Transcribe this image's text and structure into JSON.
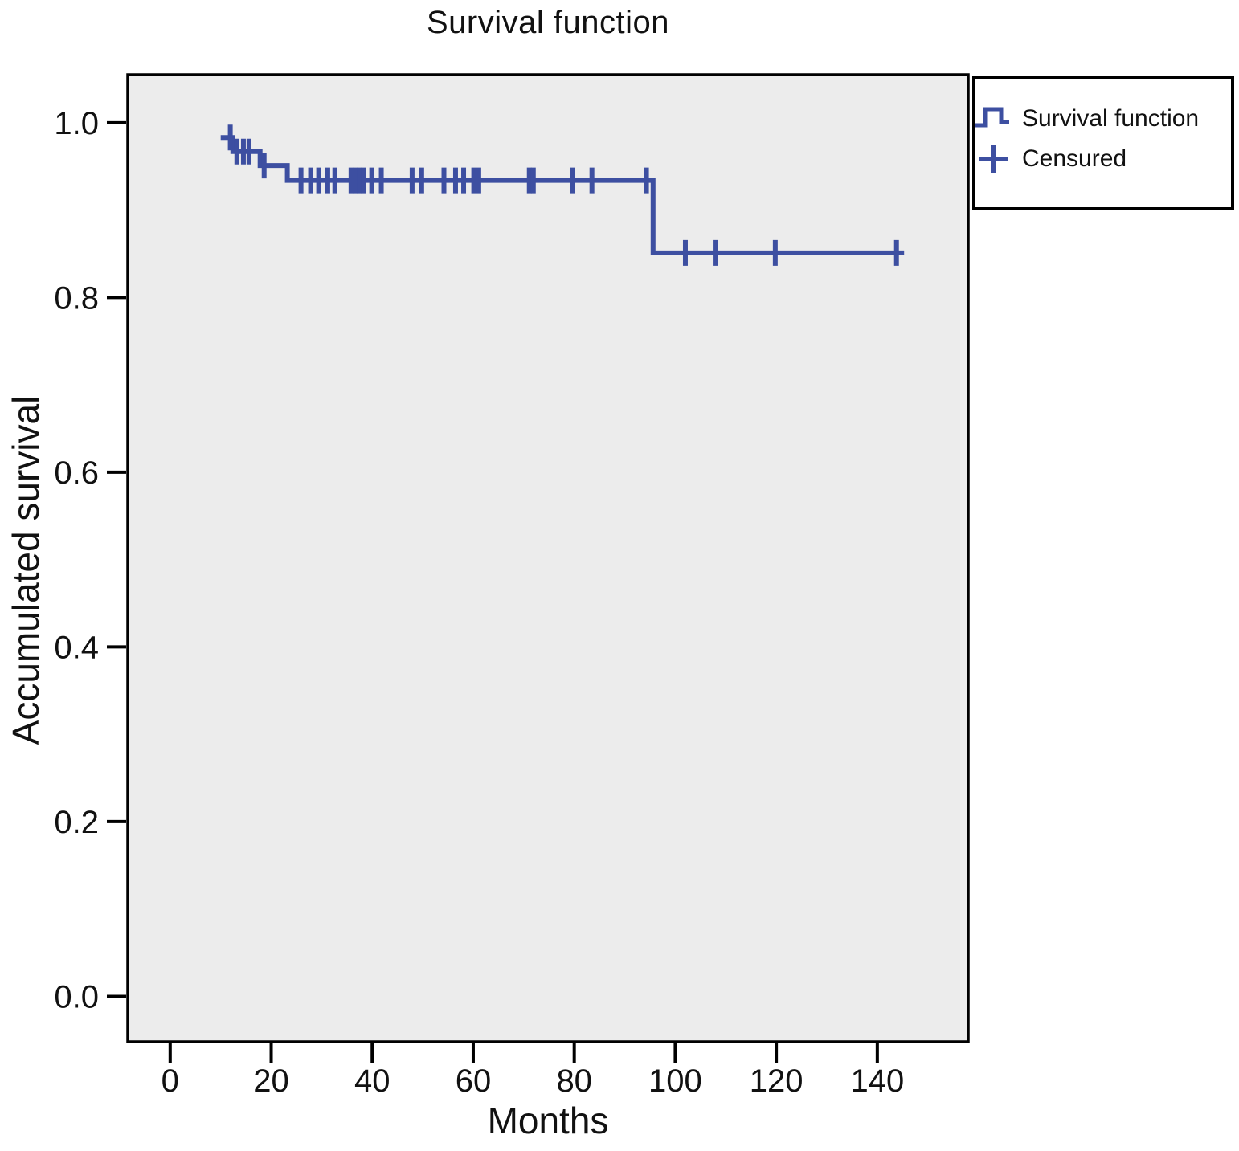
{
  "title": "Survival function",
  "axes": {
    "x_label": "Months",
    "y_label": "Accumulated survival"
  },
  "legend": {
    "items": [
      {
        "symbol": "step-line-icon",
        "label": "Survival function"
      },
      {
        "symbol": "plus-icon",
        "label": "Censured"
      }
    ]
  },
  "colors": {
    "curve": "#3d4fa1",
    "plot_background": "#ececec",
    "frame": "#000000",
    "text": "#111111"
  },
  "chart_data": {
    "type": "line",
    "subtype": "kaplan-meier-step",
    "title": "Survival function",
    "xlabel": "Months",
    "ylabel": "Accumulated survival",
    "xlim": [
      -8.4,
      158
    ],
    "ylim": [
      -0.052,
      1.055
    ],
    "xticks": [
      0,
      20,
      40,
      60,
      80,
      100,
      120,
      140
    ],
    "yticks": [
      0.0,
      0.2,
      0.4,
      0.6,
      0.8,
      1.0
    ],
    "grid": false,
    "legend_position": "outside-top-right",
    "series": [
      {
        "name": "Survival function",
        "censored_marker": "plus",
        "steps": [
          {
            "x_start": 10.0,
            "x_end": 12.4,
            "y": 0.983,
            "censors": [
              11.9
            ]
          },
          {
            "x_start": 12.4,
            "x_end": 17.8,
            "y": 0.967,
            "censors": [
              13.2,
              14.5,
              15.6
            ]
          },
          {
            "x_start": 17.8,
            "x_end": 23.2,
            "y": 0.951,
            "censors": [
              18.6
            ]
          },
          {
            "x_start": 23.2,
            "x_end": 95.6,
            "y": 0.934,
            "censors": [
              25.9,
              27.8,
              29.4,
              31.2,
              32.6,
              35.8,
              36.7,
              37.5,
              38.3,
              39.9,
              41.8,
              47.9,
              49.8,
              54.2,
              56.5,
              58.1,
              60.1,
              61.1,
              71.1,
              71.9,
              79.7,
              83.5,
              94.3
            ]
          },
          {
            "x_start": 95.6,
            "x_end": 145.3,
            "y": 0.851,
            "censors": [
              102.0,
              107.9,
              119.8,
              143.8
            ]
          }
        ]
      }
    ]
  },
  "plot_geometry_note": "step curve starts at first observed time, no segment at 1.0"
}
